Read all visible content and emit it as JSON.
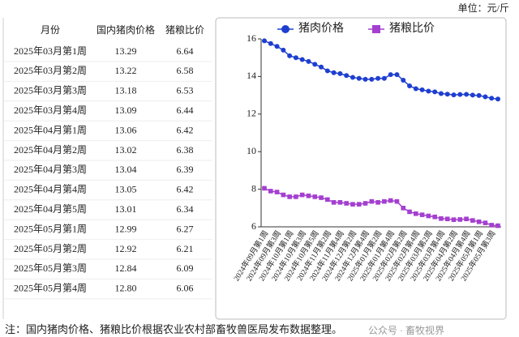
{
  "unit": "单位：元/斤",
  "table": {
    "header": [
      "月份",
      "国内猪肉价格",
      "猪粮比价"
    ],
    "rows": [
      [
        "2025年03月第1周",
        "13.29",
        "6.64"
      ],
      [
        "2025年03月第2周",
        "13.22",
        "6.58"
      ],
      [
        "2025年03月第3周",
        "13.18",
        "6.53"
      ],
      [
        "2025年03月第4周",
        "13.09",
        "6.44"
      ],
      [
        "2025年04月第1周",
        "13.06",
        "6.42"
      ],
      [
        "2025年04月第2周",
        "13.02",
        "6.38"
      ],
      [
        "2025年04月第3周",
        "13.04",
        "6.39"
      ],
      [
        "2025年04月第4周",
        "13.05",
        "6.42"
      ],
      [
        "2025年04月第5周",
        "13.01",
        "6.34"
      ],
      [
        "2025年05月第1周",
        "12.99",
        "6.27"
      ],
      [
        "2025年05月第2周",
        "12.92",
        "6.21"
      ],
      [
        "2025年05月第3周",
        "12.84",
        "6.09"
      ],
      [
        "2025年05月第4周",
        "12.80",
        "6.06"
      ]
    ]
  },
  "chart_data": {
    "type": "line",
    "categories": [
      "2024年09月第1周",
      null,
      "2024年09月第3周",
      null,
      "2024年10月第1周",
      null,
      "2024年10月第3周",
      null,
      "2024年10月第5周",
      null,
      "2024年11月第2周",
      null,
      "2024年11月第4周",
      null,
      "2024年12月第2周",
      null,
      "2024年12月第4周",
      null,
      "2025年01月第2周",
      null,
      "2025年01月第4周",
      null,
      "2025年02月第2周",
      null,
      "2025年02月第4周",
      null,
      "2025年03月第2周",
      null,
      "2025年03月第4周",
      null,
      "2025年04月第2周",
      null,
      "2025年04月第4周",
      null,
      "2025年05月第1周",
      null,
      "2025年05月第3周",
      null
    ],
    "series": [
      {
        "name": "猪肉价格",
        "color": "#1f3fd0",
        "marker": "circle",
        "values": [
          15.9,
          15.75,
          15.6,
          15.4,
          15.1,
          15.0,
          14.9,
          14.8,
          14.65,
          14.5,
          14.3,
          14.2,
          14.15,
          14.05,
          13.95,
          13.9,
          13.85,
          13.85,
          13.9,
          13.9,
          14.1,
          14.1,
          13.8,
          13.5,
          13.35,
          13.29,
          13.22,
          13.18,
          13.09,
          13.06,
          13.02,
          13.04,
          13.05,
          13.01,
          12.99,
          12.92,
          12.84,
          12.8
        ]
      },
      {
        "name": "猪粮比价",
        "color": "#a43fd0",
        "marker": "square",
        "values": [
          8.05,
          7.9,
          7.85,
          7.7,
          7.6,
          7.6,
          7.7,
          7.65,
          7.6,
          7.55,
          7.45,
          7.3,
          7.3,
          7.25,
          7.2,
          7.2,
          7.25,
          7.35,
          7.3,
          7.35,
          7.4,
          7.35,
          7.0,
          6.8,
          6.7,
          6.64,
          6.58,
          6.53,
          6.44,
          6.42,
          6.38,
          6.39,
          6.42,
          6.34,
          6.27,
          6.21,
          6.09,
          6.06
        ]
      }
    ],
    "ylim": [
      6,
      16
    ],
    "yticks": [
      6,
      8,
      10,
      12,
      14,
      16
    ]
  },
  "watermark": "公众号 · 畜牧视界",
  "note": "注：国内猪肉价格、猪粮比价根据农业农村部畜牧兽医局发布数据整理。"
}
